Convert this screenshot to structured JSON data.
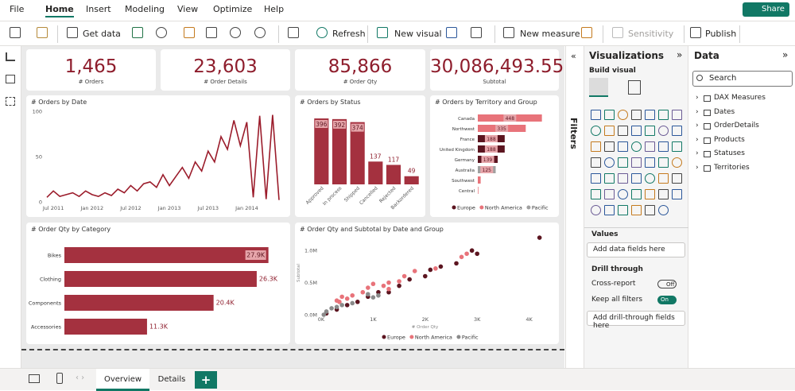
{
  "menu": {
    "tabs": [
      "File",
      "Home",
      "Insert",
      "Modeling",
      "View",
      "Optimize",
      "Help"
    ],
    "share": "Share"
  },
  "ribbon": {
    "buttons": [
      "Get data",
      "Refresh",
      "New visual",
      "New measure",
      "Sensitivity",
      "Publish"
    ]
  },
  "cards": [
    {
      "value": "1,465",
      "label": "# Orders"
    },
    {
      "value": "23,603",
      "label": "# Order Details"
    },
    {
      "value": "85,866",
      "label": "# Order Qty"
    },
    {
      "value": "30,086,493.55",
      "label": "Subtotal"
    }
  ],
  "charts": [
    {
      "type": "line",
      "title": "# Orders by Date",
      "color": "#9b1c2b",
      "categories": [
        null,
        "Jul 2011",
        null,
        null,
        null,
        null,
        null,
        "Jan 2012",
        null,
        null,
        null,
        null,
        null,
        "Jul 2012",
        null,
        null,
        null,
        null,
        null,
        "Jan 2013",
        null,
        null,
        null,
        null,
        null,
        "Jul 2013",
        null,
        null,
        null,
        null,
        null,
        "Jan 2014",
        null,
        null,
        null,
        null,
        null
      ],
      "values": [
        5,
        12,
        6,
        8,
        10,
        6,
        12,
        8,
        6,
        10,
        7,
        14,
        10,
        18,
        12,
        20,
        22,
        16,
        30,
        18,
        28,
        38,
        26,
        44,
        34,
        56,
        44,
        72,
        58,
        90,
        62,
        88,
        5,
        95,
        3,
        96,
        2
      ],
      "ylim": [
        0,
        100
      ],
      "yticks": [
        0,
        50,
        100
      ]
    },
    {
      "type": "bar",
      "title": "# Orders by Status",
      "color": "#a4313f",
      "categories": [
        "Approved",
        "In process",
        "Shipped",
        "Cancelled",
        "Rejected",
        "Backordered"
      ],
      "values": [
        396,
        392,
        374,
        137,
        117,
        49
      ],
      "ylim": [
        0,
        420
      ]
    },
    {
      "type": "hbar",
      "title": "# Orders by Territory and Group",
      "categories": [
        "Canada",
        "Northwest",
        "France",
        "United Kingdom",
        "Germany",
        "Australia",
        "Southwest",
        "Central"
      ],
      "values": [
        448,
        335,
        188,
        188,
        139,
        125,
        20,
        4
      ],
      "value_labels": [
        "448",
        "335",
        "188",
        "188",
        "139",
        "125",
        null,
        null
      ],
      "groups": [
        "North America",
        "North America",
        "Europe",
        "Europe",
        "Europe",
        "Pacific",
        "North America",
        "North America"
      ],
      "series": [
        {
          "name": "Europe",
          "color": "#5c1520"
        },
        {
          "name": "North America",
          "color": "#e8737a"
        },
        {
          "name": "Pacific",
          "color": "#a0a0a0"
        }
      ],
      "xlim": [
        0,
        500
      ]
    },
    {
      "type": "hbar",
      "title": "# Order Qty by Category",
      "color": "#a4313f",
      "categories": [
        "Bikes",
        "Clothing",
        "Components",
        "Accessories"
      ],
      "values": [
        27900,
        26300,
        20400,
        11300
      ],
      "value_labels": [
        "27.9K",
        "26.3K",
        "20.4K",
        "11.3K"
      ],
      "xlim": [
        0,
        28700
      ]
    },
    {
      "type": "scatter",
      "title": "# Order Qty and Subtotal by Date and Group",
      "xlabel": "# Order Qty",
      "ylabel": "Subtotal",
      "xlim": [
        0,
        4450
      ],
      "ylim": [
        0,
        1300000
      ],
      "xticks": [
        {
          "value": 0,
          "label": "0K"
        },
        {
          "value": 1000,
          "label": "1K"
        },
        {
          "value": 2000,
          "label": "2K"
        },
        {
          "value": 3000,
          "label": "3K"
        },
        {
          "value": 4000,
          "label": "4K"
        }
      ],
      "yticks": [
        {
          "value": 0,
          "label": "0.0M"
        },
        {
          "value": 500000,
          "label": "0.5M"
        },
        {
          "value": 1000000,
          "label": "1.0M"
        }
      ],
      "series": [
        {
          "name": "Europe",
          "color": "#5c1520",
          "x": [
            100,
            300,
            500,
            700,
            900,
            1100,
            1300,
            1500,
            1700,
            2000,
            2100,
            2300,
            2600,
            2900,
            3000,
            4200
          ],
          "y": [
            20000,
            80000,
            150000,
            200000,
            280000,
            350000,
            350000,
            450000,
            550000,
            600000,
            700000,
            750000,
            800000,
            1000000,
            950000,
            1200000
          ]
        },
        {
          "name": "North America",
          "color": "#e8737a",
          "x": [
            300,
            350,
            400,
            500,
            600,
            800,
            900,
            1000,
            1200,
            1300,
            1500,
            1600,
            1800,
            2200,
            2700,
            2800,
            1300
          ],
          "y": [
            220000,
            200000,
            280000,
            250000,
            300000,
            350000,
            420000,
            480000,
            450000,
            500000,
            520000,
            600000,
            680000,
            720000,
            900000,
            950000,
            400000
          ]
        },
        {
          "name": "Pacific",
          "color": "#8a8a8a",
          "x": [
            50,
            100,
            200,
            300,
            400,
            600,
            900,
            1000,
            1100
          ],
          "y": [
            0,
            50000,
            100000,
            120000,
            150000,
            180000,
            320000,
            270000,
            300000
          ]
        }
      ]
    }
  ],
  "filters": {
    "title": "Filters"
  },
  "visualizations": {
    "title": "Visualizations",
    "build": "Build visual",
    "values": "Values",
    "add_fields": "Add data fields here",
    "drill": "Drill through",
    "cross": "Cross-report",
    "off": "Off",
    "keep": "Keep all filters",
    "on": "On",
    "add_drill": "Add drill-through fields here"
  },
  "data_pane": {
    "title": "Data",
    "search": "Search",
    "tables": [
      "DAX Measures",
      "Dates",
      "OrderDetails",
      "Products",
      "Statuses",
      "Territories"
    ]
  },
  "pages": {
    "tabs": [
      "Overview",
      "Details"
    ],
    "add": "+"
  }
}
